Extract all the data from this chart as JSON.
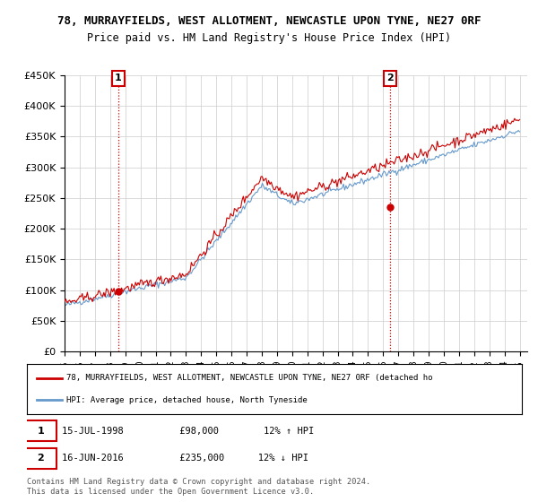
{
  "title_line1": "78, MURRAYFIELDS, WEST ALLOTMENT, NEWCASTLE UPON TYNE, NE27 0RF",
  "title_line2": "Price paid vs. HM Land Registry's House Price Index (HPI)",
  "ytick_values": [
    0,
    50000,
    100000,
    150000,
    200000,
    250000,
    300000,
    350000,
    400000,
    450000
  ],
  "sale_color": "#cc0000",
  "hpi_color": "#6699cc",
  "legend_sale_label": "78, MURRAYFIELDS, WEST ALLOTMENT, NEWCASTLE UPON TYNE, NE27 0RF (detached ho",
  "legend_hpi_label": "HPI: Average price, detached house, North Tyneside",
  "footer": "Contains HM Land Registry data © Crown copyright and database right 2024.\nThis data is licensed under the Open Government Licence v3.0.",
  "background_color": "#ffffff",
  "grid_color": "#cccccc",
  "marker1_year": 1998.54,
  "marker1_val": 98000,
  "marker2_year": 2016.46,
  "marker2_val": 235000
}
